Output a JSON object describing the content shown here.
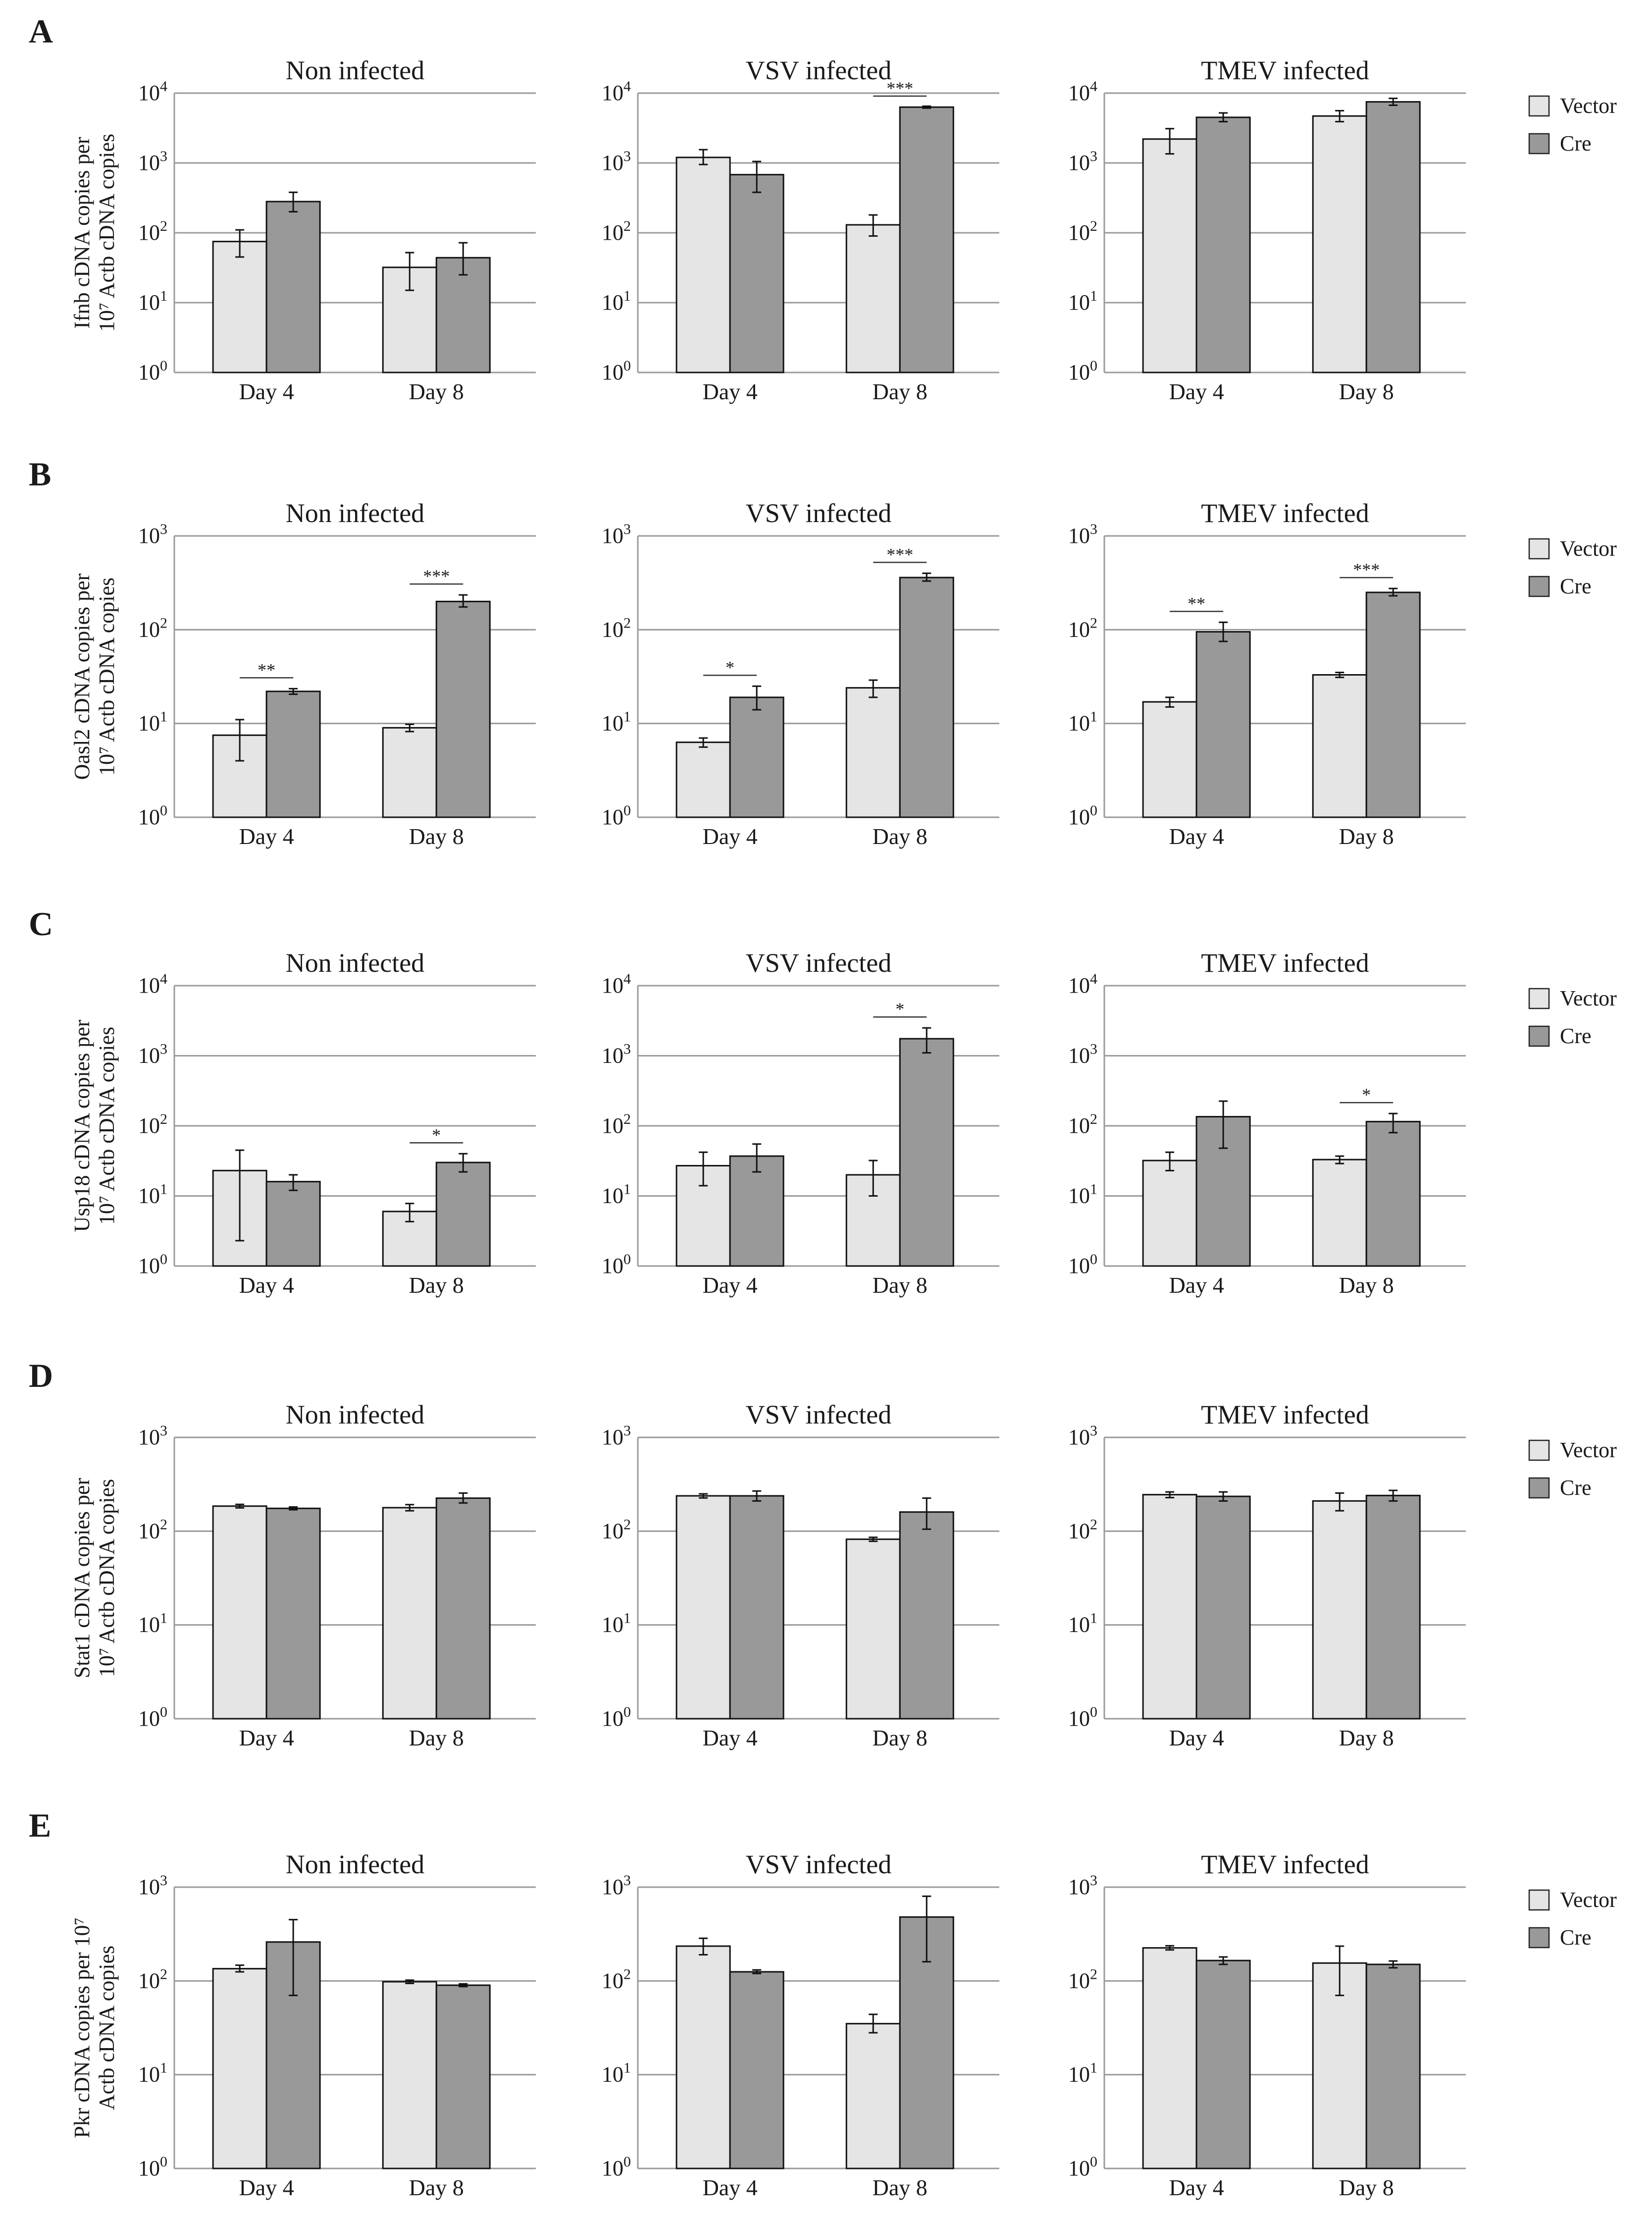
{
  "legend": {
    "items": [
      {
        "label": "Vector",
        "color": "#e5e5e5"
      },
      {
        "label": "Cre",
        "color": "#999999"
      }
    ]
  },
  "panels": [
    {
      "letter": "A",
      "ylabel_lines": [
        "Ifnb cDNA copies per",
        "10⁷ Actb cDNA copies"
      ],
      "y_exp_max": 4
    },
    {
      "letter": "B",
      "ylabel_lines": [
        "Oasl2 cDNA copies per",
        "10⁷ Actb cDNA copies"
      ],
      "y_exp_max": 3
    },
    {
      "letter": "C",
      "ylabel_lines": [
        "Usp18 cDNA copies per",
        "10⁷ Actb cDNA copies"
      ],
      "y_exp_max": 4
    },
    {
      "letter": "D",
      "ylabel_lines": [
        "Stat1 cDNA copies per",
        "10⁷ Actb cDNA copies"
      ],
      "y_exp_max": 3
    },
    {
      "letter": "E",
      "ylabel_lines": [
        "Pkr cDNA copies per 10⁷",
        "Actb cDNA copies"
      ],
      "y_exp_max": 3
    }
  ],
  "chart_data": [
    {
      "panel": "A",
      "type": "bar",
      "title": "Non infected",
      "categories": [
        "Day 4",
        "Day 8"
      ],
      "ylim": [
        1,
        10000
      ],
      "yscale": "log",
      "series": [
        {
          "name": "Vector",
          "values": [
            75,
            32
          ],
          "err_low": [
            45,
            15
          ],
          "err_high": [
            110,
            52
          ]
        },
        {
          "name": "Cre",
          "values": [
            280,
            44
          ],
          "err_low": [
            200,
            25
          ],
          "err_high": [
            380,
            72
          ]
        }
      ],
      "significance": []
    },
    {
      "panel": "A",
      "type": "bar",
      "title": "VSV infected",
      "categories": [
        "Day 4",
        "Day 8"
      ],
      "ylim": [
        1,
        10000
      ],
      "yscale": "log",
      "series": [
        {
          "name": "Vector",
          "values": [
            1200,
            130
          ],
          "err_low": [
            950,
            90
          ],
          "err_high": [
            1550,
            180
          ]
        },
        {
          "name": "Cre",
          "values": [
            680,
            6300
          ],
          "err_low": [
            380,
            6100
          ],
          "err_high": [
            1050,
            6500
          ]
        }
      ],
      "significance": [
        {
          "category": "Day 8",
          "label": "***"
        }
      ]
    },
    {
      "panel": "A",
      "type": "bar",
      "title": "TMEV infected",
      "categories": [
        "Day 4",
        "Day 8"
      ],
      "ylim": [
        1,
        10000
      ],
      "yscale": "log",
      "series": [
        {
          "name": "Vector",
          "values": [
            2200,
            4700
          ],
          "err_low": [
            1350,
            3900
          ],
          "err_high": [
            3100,
            5600
          ]
        },
        {
          "name": "Cre",
          "values": [
            4500,
            7500
          ],
          "err_low": [
            3900,
            6700
          ],
          "err_high": [
            5200,
            8400
          ]
        }
      ],
      "significance": []
    },
    {
      "panel": "B",
      "type": "bar",
      "title": "Non infected",
      "categories": [
        "Day 4",
        "Day 8"
      ],
      "ylim": [
        1,
        1000
      ],
      "yscale": "log",
      "series": [
        {
          "name": "Vector",
          "values": [
            7.5,
            9
          ],
          "err_low": [
            4,
            8.2
          ],
          "err_high": [
            11,
            9.8
          ]
        },
        {
          "name": "Cre",
          "values": [
            22,
            200
          ],
          "err_low": [
            20.5,
            175
          ],
          "err_high": [
            23.5,
            235
          ]
        }
      ],
      "significance": [
        {
          "category": "Day 4",
          "label": "**"
        },
        {
          "category": "Day 8",
          "label": "***"
        }
      ]
    },
    {
      "panel": "B",
      "type": "bar",
      "title": "VSV infected",
      "categories": [
        "Day 4",
        "Day 8"
      ],
      "ylim": [
        1,
        1000
      ],
      "yscale": "log",
      "series": [
        {
          "name": "Vector",
          "values": [
            6.3,
            24
          ],
          "err_low": [
            5.6,
            19
          ],
          "err_high": [
            7,
            29
          ]
        },
        {
          "name": "Cre",
          "values": [
            19,
            360
          ],
          "err_low": [
            14,
            330
          ],
          "err_high": [
            25,
            400
          ]
        }
      ],
      "significance": [
        {
          "category": "Day 4",
          "label": "*"
        },
        {
          "category": "Day 8",
          "label": "***"
        }
      ]
    },
    {
      "panel": "B",
      "type": "bar",
      "title": "TMEV infected",
      "categories": [
        "Day 4",
        "Day 8"
      ],
      "ylim": [
        1,
        1000
      ],
      "yscale": "log",
      "series": [
        {
          "name": "Vector",
          "values": [
            17,
            33
          ],
          "err_low": [
            15,
            31
          ],
          "err_high": [
            19,
            35
          ]
        },
        {
          "name": "Cre",
          "values": [
            95,
            250
          ],
          "err_low": [
            75,
            230
          ],
          "err_high": [
            120,
            275
          ]
        }
      ],
      "significance": [
        {
          "category": "Day 4",
          "label": "**"
        },
        {
          "category": "Day 8",
          "label": "***"
        }
      ]
    },
    {
      "panel": "C",
      "type": "bar",
      "title": "Non infected",
      "categories": [
        "Day 4",
        "Day 8"
      ],
      "ylim": [
        1,
        10000
      ],
      "yscale": "log",
      "series": [
        {
          "name": "Vector",
          "values": [
            23,
            6
          ],
          "err_low": [
            2.3,
            4.3
          ],
          "err_high": [
            45,
            7.8
          ]
        },
        {
          "name": "Cre",
          "values": [
            16,
            30
          ],
          "err_low": [
            12,
            22
          ],
          "err_high": [
            20,
            40
          ]
        }
      ],
      "significance": [
        {
          "category": "Day 8",
          "label": "*"
        }
      ]
    },
    {
      "panel": "C",
      "type": "bar",
      "title": "VSV infected",
      "categories": [
        "Day 4",
        "Day 8"
      ],
      "ylim": [
        1,
        10000
      ],
      "yscale": "log",
      "series": [
        {
          "name": "Vector",
          "values": [
            27,
            20
          ],
          "err_low": [
            14,
            10
          ],
          "err_high": [
            42,
            32
          ]
        },
        {
          "name": "Cre",
          "values": [
            37,
            1750
          ],
          "err_low": [
            22,
            1100
          ],
          "err_high": [
            55,
            2500
          ]
        }
      ],
      "significance": [
        {
          "category": "Day 8",
          "label": "*"
        }
      ]
    },
    {
      "panel": "C",
      "type": "bar",
      "title": "TMEV infected",
      "categories": [
        "Day 4",
        "Day 8"
      ],
      "ylim": [
        1,
        10000
      ],
      "yscale": "log",
      "series": [
        {
          "name": "Vector",
          "values": [
            32,
            33
          ],
          "err_low": [
            23,
            29
          ],
          "err_high": [
            42,
            37
          ]
        },
        {
          "name": "Cre",
          "values": [
            135,
            115
          ],
          "err_low": [
            48,
            80
          ],
          "err_high": [
            225,
            150
          ]
        }
      ],
      "significance": [
        {
          "category": "Day 8",
          "label": "*"
        }
      ]
    },
    {
      "panel": "D",
      "type": "bar",
      "title": "Non infected",
      "categories": [
        "Day 4",
        "Day 8"
      ],
      "ylim": [
        1,
        1000
      ],
      "yscale": "log",
      "series": [
        {
          "name": "Vector",
          "values": [
            185,
            178
          ],
          "err_low": [
            177,
            165
          ],
          "err_high": [
            193,
            192
          ]
        },
        {
          "name": "Cre",
          "values": [
            175,
            225
          ],
          "err_low": [
            169,
            200
          ],
          "err_high": [
            181,
            255
          ]
        }
      ],
      "significance": []
    },
    {
      "panel": "D",
      "type": "bar",
      "title": "VSV infected",
      "categories": [
        "Day 4",
        "Day 8"
      ],
      "ylim": [
        1,
        1000
      ],
      "yscale": "log",
      "series": [
        {
          "name": "Vector",
          "values": [
            238,
            82
          ],
          "err_low": [
            226,
            78
          ],
          "err_high": [
            250,
            86
          ]
        },
        {
          "name": "Cre",
          "values": [
            238,
            160
          ],
          "err_low": [
            210,
            105
          ],
          "err_high": [
            268,
            225
          ]
        }
      ],
      "significance": []
    },
    {
      "panel": "D",
      "type": "bar",
      "title": "TMEV infected",
      "categories": [
        "Day 4",
        "Day 8"
      ],
      "ylim": [
        1,
        1000
      ],
      "yscale": "log",
      "series": [
        {
          "name": "Vector",
          "values": [
            245,
            210
          ],
          "err_low": [
            228,
            165
          ],
          "err_high": [
            262,
            255
          ]
        },
        {
          "name": "Cre",
          "values": [
            235,
            240
          ],
          "err_low": [
            210,
            210
          ],
          "err_high": [
            262,
            272
          ]
        }
      ],
      "significance": []
    },
    {
      "panel": "E",
      "type": "bar",
      "title": "Non infected",
      "categories": [
        "Day 4",
        "Day 8"
      ],
      "ylim": [
        1,
        1000
      ],
      "yscale": "log",
      "series": [
        {
          "name": "Vector",
          "values": [
            135,
            98
          ],
          "err_low": [
            125,
            94
          ],
          "err_high": [
            147,
            102
          ]
        },
        {
          "name": "Cre",
          "values": [
            260,
            90
          ],
          "err_low": [
            70,
            87
          ],
          "err_high": [
            450,
            93
          ]
        }
      ],
      "significance": []
    },
    {
      "panel": "E",
      "type": "bar",
      "title": "VSV infected",
      "categories": [
        "Day 4",
        "Day 8"
      ],
      "ylim": [
        1,
        1000
      ],
      "yscale": "log",
      "series": [
        {
          "name": "Vector",
          "values": [
            235,
            35
          ],
          "err_low": [
            190,
            28
          ],
          "err_high": [
            285,
            44
          ]
        },
        {
          "name": "Cre",
          "values": [
            125,
            480
          ],
          "err_low": [
            120,
            160
          ],
          "err_high": [
            131,
            800
          ]
        }
      ],
      "significance": []
    },
    {
      "panel": "E",
      "type": "bar",
      "title": "TMEV infected",
      "categories": [
        "Day 4",
        "Day 8"
      ],
      "ylim": [
        1,
        1000
      ],
      "yscale": "log",
      "series": [
        {
          "name": "Vector",
          "values": [
            225,
            155
          ],
          "err_low": [
            214,
            70
          ],
          "err_high": [
            237,
            235
          ]
        },
        {
          "name": "Cre",
          "values": [
            165,
            150
          ],
          "err_low": [
            150,
            138
          ],
          "err_high": [
            180,
            163
          ]
        }
      ],
      "significance": []
    }
  ]
}
